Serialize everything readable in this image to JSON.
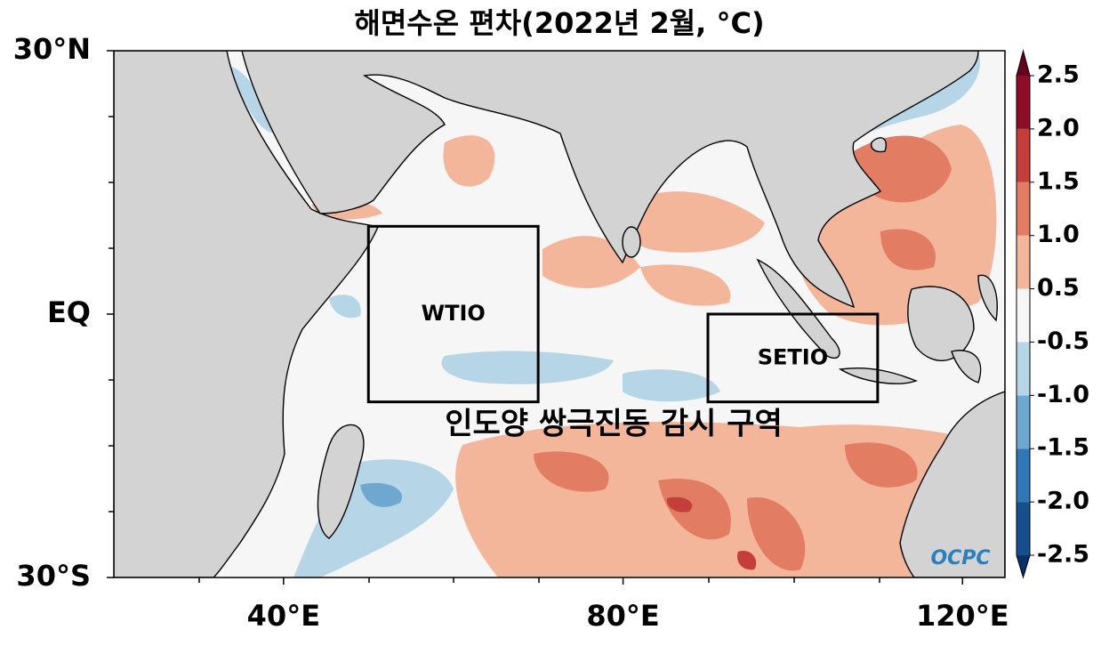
{
  "map": {
    "title": "해면수온 편차(2022년 2월, °C)",
    "xlim": [
      20,
      125
    ],
    "ylim": [
      -30,
      30
    ],
    "xticks": [
      {
        "value": 40,
        "label": "40°E"
      },
      {
        "value": 80,
        "label": "80°E"
      },
      {
        "value": 120,
        "label": "120°E"
      }
    ],
    "yticks": [
      {
        "value": -30,
        "label": "30°S"
      },
      {
        "value": 0,
        "label": "EQ"
      },
      {
        "value": 30,
        "label": "30°N"
      }
    ],
    "regions": [
      {
        "label": "WTIO",
        "lon": [
          50,
          70
        ],
        "lat": [
          -10,
          10
        ]
      },
      {
        "label": "SETIO",
        "lon": [
          90,
          110
        ],
        "lat": [
          -10,
          0
        ]
      }
    ],
    "annotation": "인도양 쌍극진동 감시 구역",
    "logo": "OCPC",
    "colorbar": {
      "ticks": [
        -2.5,
        {
          "value": -2,
          "label": "-2.0"
        },
        -1.5,
        {
          "value": -1,
          "label": "-1.0"
        },
        -0.5,
        0.5,
        {
          "value": 1,
          "label": "1.0"
        },
        1.5,
        {
          "value": 2,
          "label": "2.0"
        },
        2.5
      ],
      "colors": [
        "#15508d",
        "#3079b6",
        "#6ea8d1",
        "#b6d6e8",
        "#f7f6f6",
        "#f4b69b",
        "#e27c63",
        "#c43e3b",
        "#8e0d26"
      ],
      "under_color": "#08306b",
      "over_color": "#67001f"
    }
  }
}
